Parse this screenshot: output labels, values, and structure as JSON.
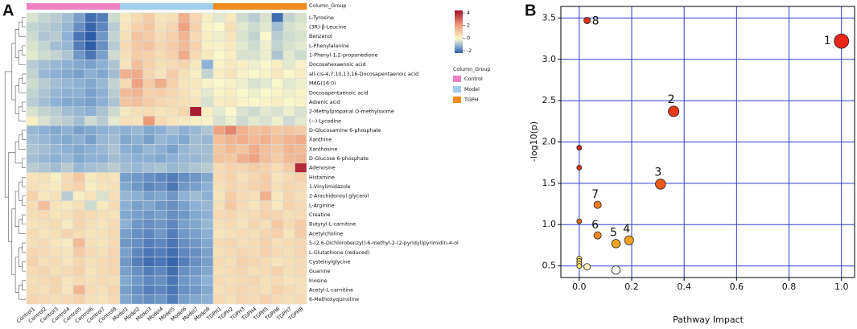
{
  "panel_labels": [
    "A",
    "B"
  ],
  "chart_data": [
    {
      "type": "heatmap",
      "legend_title": "Column_Group",
      "groups": [
        {
          "name": "Control",
          "color": "#ef80c2",
          "columns": [
            "Control1",
            "Control2",
            "Control3",
            "Control4",
            "Control5",
            "Control6",
            "Control7",
            "Control8"
          ]
        },
        {
          "name": "Model",
          "color": "#9fcdee",
          "columns": [
            "Model1",
            "Model2",
            "Model3",
            "Model4",
            "Model5",
            "Model6",
            "Model7",
            "Model8"
          ]
        },
        {
          "name": "TGPH",
          "color": "#ee8a1e",
          "columns": [
            "TGPH1",
            "TGPH2",
            "TGPH3",
            "TGPH4",
            "TGPH5",
            "TGPH6",
            "TGPH7",
            "TGPH8"
          ]
        }
      ],
      "rows": [
        "L-Tyrosine",
        "(3R)-β-Leucine",
        "Benzenol",
        "L-Phenylalanine",
        "1-Phenyl-1,2-propanedione",
        "Docosahexaenoic acid",
        "all-cis-4,7,10,13,16-Docosapentaenoic acid",
        "MAG(16:0)",
        "Docosapentaenoic acid",
        "Adrenic acid",
        "2-Methylpropanal O-methyloxime",
        "(−)-Lycodine",
        "D-Glucosamine 6-phosphate",
        "Xanthine",
        "Xanthosine",
        "D-Glucose 6-phosphate",
        "Adenosine",
        "Histamine",
        "1-Vinylimidazole",
        "2-Arachidonoyl glycerol",
        "L-Arginine",
        "Creatine",
        "Butyryl-L-carnitine",
        "Acetylcholine",
        "5-(2,6-Dichlorobenzyl)-6-methyl-2-(2-pyridyl)pyrimidin-4-ol",
        "L-Glutathione (reduced)",
        "Cysteinylglycine",
        "Guanine",
        "Inosine",
        "Acetyl-L-carnitine",
        "6-Methoxyquinoline"
      ],
      "values": [
        [
          -0.3,
          -0.5,
          -0.6,
          -0.8,
          -1.2,
          -1.8,
          -1.6,
          -0.4,
          0.3,
          0.6,
          0.9,
          0.4,
          0.5,
          1.5,
          0.7,
          0.2,
          -0.2,
          0.3,
          -0.4,
          -0.6,
          -0.3,
          -1.8,
          -0.5,
          -0.3
        ],
        [
          -0.5,
          -0.6,
          -0.7,
          -0.9,
          -1.4,
          -1.9,
          -1.5,
          -0.6,
          0.4,
          0.8,
          1.0,
          0.5,
          0.7,
          1.8,
          0.8,
          0.1,
          0.0,
          0.5,
          -0.2,
          -0.4,
          -0.2,
          -0.8,
          -0.3,
          -0.2
        ],
        [
          -0.4,
          -0.7,
          -0.6,
          -1.0,
          -1.7,
          -2.0,
          -1.3,
          -0.5,
          0.5,
          1.1,
          0.9,
          0.6,
          0.8,
          1.4,
          0.6,
          0.2,
          -0.1,
          0.4,
          -0.3,
          -0.5,
          0.0,
          -0.6,
          -0.4,
          -0.3
        ],
        [
          -0.3,
          -0.5,
          -0.8,
          -0.9,
          -1.6,
          -2.0,
          -1.4,
          -0.6,
          0.6,
          1.0,
          1.1,
          0.7,
          0.9,
          1.3,
          0.8,
          0.2,
          0.1,
          0.3,
          -0.2,
          -0.4,
          -0.1,
          -0.5,
          -0.3,
          -0.2
        ],
        [
          -0.2,
          -0.4,
          -0.5,
          -0.7,
          -1.3,
          -1.7,
          -1.2,
          -0.4,
          0.5,
          0.9,
          0.8,
          0.6,
          0.8,
          1.6,
          0.6,
          0.3,
          0.0,
          0.2,
          -0.3,
          -0.3,
          -0.1,
          -0.7,
          -0.2,
          -0.4
        ],
        [
          -0.6,
          -0.8,
          -0.9,
          -1.0,
          -1.1,
          -1.2,
          -1.0,
          -0.7,
          0.4,
          1.2,
          0.8,
          0.5,
          0.6,
          0.7,
          0.3,
          -1.0,
          0.1,
          0.3,
          0.2,
          -0.1,
          0.0,
          0.2,
          -0.2,
          0.1
        ],
        [
          -0.5,
          -0.9,
          -1.0,
          -1.1,
          -1.2,
          -1.0,
          -1.1,
          -0.8,
          1.5,
          1.6,
          0.7,
          0.4,
          0.9,
          0.5,
          0.2,
          -0.5,
          0.2,
          0.4,
          0.1,
          0.0,
          0.1,
          0.3,
          0.0,
          0.2
        ],
        [
          -0.4,
          -0.6,
          -0.8,
          -0.9,
          -1.0,
          -1.1,
          -0.9,
          -0.5,
          0.6,
          1.8,
          0.9,
          1.6,
          0.8,
          0.4,
          0.3,
          0.1,
          0.0,
          0.1,
          -0.1,
          -0.3,
          -0.2,
          0.0,
          -0.2,
          -0.1
        ],
        [
          -0.5,
          -0.7,
          -0.9,
          -1.0,
          -1.0,
          -1.2,
          -1.0,
          -0.6,
          1.3,
          1.4,
          0.8,
          0.9,
          0.7,
          0.5,
          0.3,
          -0.2,
          0.1,
          0.2,
          0.0,
          -0.1,
          0.0,
          0.1,
          -0.1,
          0.1
        ],
        [
          -0.6,
          -0.8,
          -1.0,
          -1.1,
          -1.1,
          -1.2,
          -1.0,
          -0.7,
          1.1,
          1.2,
          0.9,
          0.7,
          0.6,
          0.5,
          0.4,
          -0.3,
          0.2,
          0.3,
          0.1,
          0.0,
          0.1,
          0.2,
          0.0,
          0.1
        ],
        [
          -0.3,
          -0.5,
          -0.6,
          -0.8,
          -0.9,
          -1.0,
          -0.7,
          -0.4,
          0.3,
          0.5,
          0.6,
          0.4,
          0.5,
          0.7,
          3.8,
          0.2,
          -0.2,
          0.0,
          -0.3,
          -0.4,
          -0.2,
          -0.3,
          -0.1,
          -0.3
        ],
        [
          0.2,
          -0.3,
          -0.5,
          -0.6,
          -0.8,
          -0.4,
          -0.6,
          -0.2,
          0.5,
          0.4,
          2.0,
          0.6,
          0.4,
          0.3,
          0.2,
          0.1,
          -0.3,
          -0.1,
          -0.4,
          -0.2,
          -0.3,
          -0.1,
          -0.4,
          -0.2
        ],
        [
          -0.9,
          -1.0,
          -1.1,
          -1.0,
          -1.2,
          -1.1,
          -1.0,
          -0.9,
          -1.0,
          -0.9,
          -1.1,
          -1.0,
          -0.8,
          -1.0,
          -0.9,
          -0.7,
          1.8,
          2.3,
          1.5,
          1.2,
          1.3,
          1.0,
          1.1,
          0.9
        ],
        [
          -0.8,
          -0.9,
          -1.0,
          -1.1,
          -1.0,
          -1.2,
          -0.9,
          -0.8,
          -1.1,
          -1.0,
          -1.2,
          -0.9,
          -1.0,
          -1.1,
          -0.8,
          -0.9,
          1.2,
          1.4,
          1.6,
          1.3,
          1.5,
          1.2,
          1.4,
          1.6
        ],
        [
          -0.7,
          -0.8,
          -0.9,
          -1.0,
          -1.1,
          -1.0,
          -0.9,
          -0.7,
          -1.0,
          -1.1,
          -0.9,
          -1.0,
          -1.2,
          -0.9,
          -0.8,
          -0.8,
          1.0,
          1.3,
          1.1,
          1.6,
          1.2,
          1.0,
          1.4,
          1.3
        ],
        [
          -0.8,
          -0.9,
          -1.0,
          -0.9,
          -1.1,
          -1.0,
          -1.0,
          -0.8,
          -0.9,
          -1.0,
          -1.0,
          -1.1,
          -1.0,
          -0.9,
          -0.9,
          -0.8,
          1.1,
          1.0,
          1.5,
          1.8,
          1.2,
          0.9,
          1.3,
          1.4
        ],
        [
          -0.6,
          -0.7,
          -0.8,
          -0.6,
          -0.9,
          -0.8,
          -0.7,
          -0.6,
          -0.8,
          -0.9,
          -0.8,
          -0.7,
          -0.9,
          -0.8,
          -0.7,
          -0.6,
          0.6,
          0.8,
          0.7,
          0.9,
          0.8,
          0.6,
          0.9,
          3.6
        ],
        [
          0.4,
          0.5,
          0.2,
          0.6,
          1.0,
          0.3,
          0.5,
          0.4,
          -1.2,
          -1.3,
          -1.4,
          -1.5,
          -1.6,
          -1.4,
          -1.3,
          -1.1,
          0.6,
          0.8,
          0.5,
          0.7,
          0.9,
          0.4,
          0.6,
          0.8
        ],
        [
          0.5,
          0.4,
          0.3,
          0.6,
          0.8,
          0.2,
          0.4,
          0.5,
          -1.1,
          -1.3,
          -1.5,
          -1.4,
          -1.7,
          -1.3,
          -1.2,
          -1.0,
          0.5,
          0.7,
          0.6,
          0.8,
          0.9,
          0.5,
          0.7,
          0.6
        ],
        [
          0.8,
          0.3,
          0.5,
          -0.6,
          0.2,
          0.4,
          -0.3,
          0.5,
          -0.9,
          -1.0,
          -1.2,
          -1.1,
          -1.3,
          -1.0,
          -0.8,
          -1.0,
          0.4,
          0.9,
          0.6,
          0.5,
          1.5,
          0.3,
          0.7,
          0.5
        ],
        [
          0.6,
          1.2,
          0.4,
          0.3,
          0.5,
          -0.4,
          0.3,
          0.6,
          -1.0,
          -1.2,
          -1.1,
          -1.3,
          -1.4,
          -1.2,
          -1.0,
          -0.9,
          0.5,
          1.0,
          0.6,
          0.4,
          0.7,
          0.3,
          0.8,
          0.6
        ],
        [
          0.5,
          0.6,
          0.4,
          0.5,
          0.7,
          0.6,
          0.5,
          0.4,
          -1.1,
          -1.2,
          -1.3,
          -1.2,
          -1.4,
          -1.3,
          -1.1,
          -1.0,
          0.6,
          0.7,
          0.5,
          0.6,
          0.8,
          0.7,
          0.5,
          0.6
        ],
        [
          0.4,
          0.5,
          0.6,
          0.3,
          0.7,
          0.5,
          0.4,
          0.6,
          -1.0,
          -1.3,
          -1.4,
          -1.3,
          -1.5,
          -1.2,
          -1.1,
          -0.9,
          0.5,
          0.6,
          0.4,
          0.7,
          0.5,
          1.0,
          0.6,
          0.9
        ],
        [
          0.6,
          0.4,
          0.5,
          0.7,
          0.6,
          0.4,
          0.5,
          0.6,
          -1.2,
          -1.4,
          -1.5,
          -1.3,
          -1.6,
          -1.3,
          -1.2,
          -1.0,
          0.4,
          0.5,
          0.6,
          0.5,
          0.7,
          0.8,
          0.4,
          0.9
        ],
        [
          0.5,
          0.6,
          0.4,
          0.3,
          1.3,
          0.5,
          0.4,
          0.6,
          -1.3,
          -1.4,
          -1.6,
          -1.5,
          -1.7,
          -1.4,
          -1.3,
          -1.1,
          0.6,
          0.7,
          0.5,
          0.6,
          0.8,
          0.5,
          0.6,
          0.7
        ],
        [
          0.7,
          0.6,
          0.5,
          0.4,
          0.9,
          0.6,
          0.5,
          0.7,
          -1.2,
          -1.5,
          -1.7,
          -1.6,
          -1.8,
          -1.5,
          -1.4,
          -1.2,
          0.5,
          0.6,
          0.7,
          0.6,
          0.8,
          0.6,
          0.5,
          0.7
        ],
        [
          0.8,
          0.5,
          0.6,
          0.4,
          0.7,
          0.5,
          0.6,
          0.7,
          -1.3,
          -1.6,
          -1.8,
          -1.7,
          -1.9,
          -1.6,
          -1.4,
          -1.2,
          0.6,
          0.5,
          0.8,
          0.7,
          0.6,
          0.4,
          0.5,
          0.6
        ],
        [
          0.6,
          0.7,
          0.5,
          0.6,
          0.8,
          0.4,
          0.6,
          0.7,
          -1.2,
          -1.4,
          -1.6,
          -1.5,
          -1.8,
          -1.4,
          -1.3,
          -1.1,
          0.5,
          0.6,
          0.7,
          0.5,
          0.6,
          0.8,
          0.5,
          0.6
        ],
        [
          0.5,
          0.6,
          0.7,
          0.4,
          0.6,
          0.5,
          0.6,
          0.5,
          -1.1,
          -1.3,
          -1.5,
          -1.4,
          -1.7,
          -1.3,
          -1.2,
          -1.0,
          0.6,
          0.5,
          0.6,
          0.7,
          0.5,
          0.6,
          0.4,
          0.5
        ],
        [
          0.6,
          0.5,
          0.7,
          0.4,
          1.4,
          0.6,
          0.5,
          0.7,
          -1.2,
          -1.4,
          -1.6,
          -1.5,
          -1.7,
          -1.4,
          -1.3,
          -1.1,
          0.5,
          0.6,
          0.7,
          0.6,
          0.5,
          0.8,
          0.6,
          0.5
        ],
        [
          0.7,
          0.6,
          0.5,
          0.6,
          0.8,
          0.5,
          0.4,
          0.6,
          -1.1,
          -1.3,
          -1.4,
          -1.3,
          -1.6,
          -1.2,
          -1.1,
          -1.0,
          0.6,
          0.5,
          0.7,
          0.6,
          0.8,
          0.6,
          0.5,
          0.6
        ]
      ],
      "color_stops": [
        {
          "value": -2,
          "color": "#2d5da6"
        },
        {
          "value": -1,
          "color": "#8db0d4"
        },
        {
          "value": 0,
          "color": "#f9f7cc"
        },
        {
          "value": 2,
          "color": "#ee9a78"
        },
        {
          "value": 4,
          "color": "#a40f28"
        }
      ],
      "colorbar_ticks": [
        4,
        2,
        0,
        -2
      ]
    },
    {
      "type": "scatter",
      "x": [
        1.0,
        0.03,
        0.36,
        0.31,
        0.07,
        0.07,
        0.14,
        0.19,
        0,
        0,
        0,
        0,
        0,
        0,
        0,
        0.03,
        0.14
      ],
      "y": [
        3.22,
        3.47,
        2.37,
        1.49,
        1.24,
        0.87,
        0.77,
        0.81,
        1.93,
        1.69,
        1.04,
        0.59,
        0.56,
        0.53,
        0.5,
        0.49,
        0.45
      ],
      "colors": [
        "#e8271b",
        "#e0301c",
        "#e53a1c",
        "#ec5a1a",
        "#f07c1a",
        "#f18a1c",
        "#f6a524",
        "#f3a024",
        "#e3291c",
        "#e3321c",
        "#ee6a1c",
        "#fbe36b",
        "#fbe36b",
        "#fbe36b",
        "#fbe36b",
        "#fdf4b9",
        "#fffef4"
      ],
      "labels": [
        "1",
        "8",
        "2",
        "3",
        "7",
        "6",
        "5",
        "4",
        null,
        null,
        null,
        null,
        null,
        null,
        null,
        null,
        null
      ],
      "xlabel": "Pathway Impact",
      "ylabel": "-log10(p)",
      "xlim": [
        -0.07,
        1.05
      ],
      "ylim": [
        0.36,
        3.64
      ],
      "xticks": [
        {
          "value": 0,
          "label": "0.0"
        },
        0.2,
        0.4,
        0.6,
        0.8,
        {
          "value": 1,
          "label": "1.0"
        }
      ],
      "yticks": [
        0.5,
        {
          "value": 1,
          "label": "1.0"
        },
        1.5,
        {
          "value": 2,
          "label": "2.0"
        },
        2.5,
        {
          "value": 3,
          "label": "3.0"
        },
        3.5
      ],
      "grid": true,
      "grid_color": "#2f3fd1"
    }
  ]
}
